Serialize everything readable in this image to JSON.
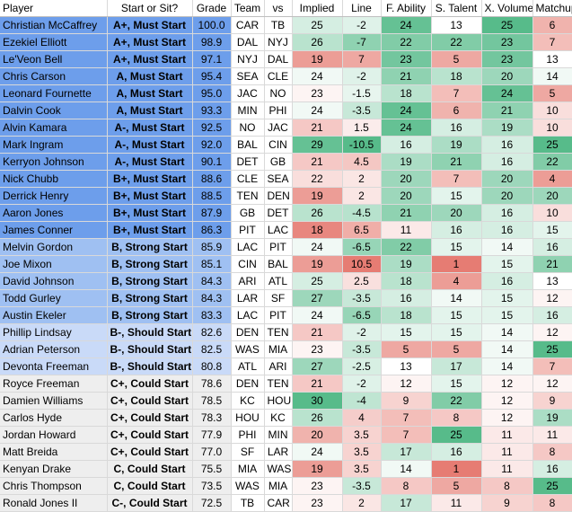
{
  "headers": [
    "Player",
    "Start or Sit?",
    "Grade",
    "Team",
    "vs",
    "Implied",
    "Line",
    "F. Ability",
    "S. Talent",
    "X. Volume",
    "Matchup"
  ],
  "colors": {
    "must": "#6d9eeb",
    "strong": "#9fc0f2",
    "should": "#c9daf8",
    "could": "#eeeeee",
    "green_strong": "#57bb8a",
    "white": "#ffffff",
    "red_strong": "#e67c73"
  },
  "rows": [
    {
      "player": "Christian McCaffrey",
      "rec": "A+, Must Start",
      "tier": "must",
      "grade": "100.0",
      "team": "CAR",
      "vs": "TB",
      "implied": "25",
      "line": "-2",
      "ability": "24",
      "talent": "13",
      "volume": "25",
      "matchup": "6"
    },
    {
      "player": "Ezekiel Elliott",
      "rec": "A+, Must Start",
      "tier": "must",
      "grade": "98.9",
      "team": "DAL",
      "vs": "NYJ",
      "implied": "26",
      "line": "-7",
      "ability": "22",
      "talent": "22",
      "volume": "23",
      "matchup": "7"
    },
    {
      "player": "Le'Veon Bell",
      "rec": "A+, Must Start",
      "tier": "must",
      "grade": "97.1",
      "team": "NYJ",
      "vs": "DAL",
      "implied": "19",
      "line": "7",
      "ability": "23",
      "talent": "5",
      "volume": "23",
      "matchup": "13"
    },
    {
      "player": "Chris Carson",
      "rec": "A, Must Start",
      "tier": "must",
      "grade": "95.4",
      "team": "SEA",
      "vs": "CLE",
      "implied": "24",
      "line": "-2",
      "ability": "21",
      "talent": "18",
      "volume": "20",
      "matchup": "14"
    },
    {
      "player": "Leonard Fournette",
      "rec": "A, Must Start",
      "tier": "must",
      "grade": "95.0",
      "team": "JAC",
      "vs": "NO",
      "implied": "23",
      "line": "-1.5",
      "ability": "18",
      "talent": "7",
      "volume": "24",
      "matchup": "5"
    },
    {
      "player": "Dalvin Cook",
      "rec": "A, Must Start",
      "tier": "must",
      "grade": "93.3",
      "team": "MIN",
      "vs": "PHI",
      "implied": "24",
      "line": "-3.5",
      "ability": "24",
      "talent": "6",
      "volume": "21",
      "matchup": "10"
    },
    {
      "player": "Alvin Kamara",
      "rec": "A-, Must Start",
      "tier": "must",
      "grade": "92.5",
      "team": "NO",
      "vs": "JAC",
      "implied": "21",
      "line": "1.5",
      "ability": "24",
      "talent": "16",
      "volume": "19",
      "matchup": "10"
    },
    {
      "player": "Mark Ingram",
      "rec": "A-, Must Start",
      "tier": "must",
      "grade": "92.0",
      "team": "BAL",
      "vs": "CIN",
      "implied": "29",
      "line": "-10.5",
      "ability": "16",
      "talent": "19",
      "volume": "16",
      "matchup": "25"
    },
    {
      "player": "Kerryon Johnson",
      "rec": "A-, Must Start",
      "tier": "must",
      "grade": "90.1",
      "team": "DET",
      "vs": "GB",
      "implied": "21",
      "line": "4.5",
      "ability": "19",
      "talent": "21",
      "volume": "16",
      "matchup": "22"
    },
    {
      "player": "Nick Chubb",
      "rec": "B+, Must Start",
      "tier": "must",
      "grade": "88.6",
      "team": "CLE",
      "vs": "SEA",
      "implied": "22",
      "line": "2",
      "ability": "20",
      "talent": "7",
      "volume": "20",
      "matchup": "4"
    },
    {
      "player": "Derrick Henry",
      "rec": "B+, Must Start",
      "tier": "must",
      "grade": "88.5",
      "team": "TEN",
      "vs": "DEN",
      "implied": "19",
      "line": "2",
      "ability": "20",
      "talent": "15",
      "volume": "20",
      "matchup": "20"
    },
    {
      "player": "Aaron Jones",
      "rec": "B+, Must Start",
      "tier": "must",
      "grade": "87.9",
      "team": "GB",
      "vs": "DET",
      "implied": "26",
      "line": "-4.5",
      "ability": "21",
      "talent": "20",
      "volume": "16",
      "matchup": "10"
    },
    {
      "player": "James Conner",
      "rec": "B+, Must Start",
      "tier": "must",
      "grade": "86.3",
      "team": "PIT",
      "vs": "LAC",
      "implied": "18",
      "line": "6.5",
      "ability": "11",
      "talent": "16",
      "volume": "16",
      "matchup": "15"
    },
    {
      "player": "Melvin Gordon",
      "rec": "B, Strong Start",
      "tier": "strong",
      "grade": "85.9",
      "team": "LAC",
      "vs": "PIT",
      "implied": "24",
      "line": "-6.5",
      "ability": "22",
      "talent": "15",
      "volume": "14",
      "matchup": "16"
    },
    {
      "player": "Joe Mixon",
      "rec": "B, Strong Start",
      "tier": "strong",
      "grade": "85.1",
      "team": "CIN",
      "vs": "BAL",
      "implied": "19",
      "line": "10.5",
      "ability": "19",
      "talent": "1",
      "volume": "15",
      "matchup": "21"
    },
    {
      "player": "David Johnson",
      "rec": "B, Strong Start",
      "tier": "strong",
      "grade": "84.3",
      "team": "ARI",
      "vs": "ATL",
      "implied": "25",
      "line": "2.5",
      "ability": "18",
      "talent": "4",
      "volume": "16",
      "matchup": "13"
    },
    {
      "player": "Todd Gurley",
      "rec": "B, Strong Start",
      "tier": "strong",
      "grade": "84.3",
      "team": "LAR",
      "vs": "SF",
      "implied": "27",
      "line": "-3.5",
      "ability": "16",
      "talent": "14",
      "volume": "15",
      "matchup": "12"
    },
    {
      "player": "Austin Ekeler",
      "rec": "B, Strong Start",
      "tier": "strong",
      "grade": "83.3",
      "team": "LAC",
      "vs": "PIT",
      "implied": "24",
      "line": "-6.5",
      "ability": "18",
      "talent": "15",
      "volume": "15",
      "matchup": "16"
    },
    {
      "player": "Phillip Lindsay",
      "rec": "B-, Should Start",
      "tier": "should",
      "grade": "82.6",
      "team": "DEN",
      "vs": "TEN",
      "implied": "21",
      "line": "-2",
      "ability": "15",
      "talent": "15",
      "volume": "14",
      "matchup": "12"
    },
    {
      "player": "Adrian Peterson",
      "rec": "B-, Should Start",
      "tier": "should",
      "grade": "82.5",
      "team": "WAS",
      "vs": "MIA",
      "implied": "23",
      "line": "-3.5",
      "ability": "5",
      "talent": "5",
      "volume": "14",
      "matchup": "25"
    },
    {
      "player": "Devonta Freeman",
      "rec": "B-, Should Start",
      "tier": "should",
      "grade": "80.8",
      "team": "ATL",
      "vs": "ARI",
      "implied": "27",
      "line": "-2.5",
      "ability": "13",
      "talent": "17",
      "volume": "14",
      "matchup": "7"
    },
    {
      "player": "Royce Freeman",
      "rec": "C+, Could Start",
      "tier": "could",
      "grade": "78.6",
      "team": "DEN",
      "vs": "TEN",
      "implied": "21",
      "line": "-2",
      "ability": "12",
      "talent": "15",
      "volume": "12",
      "matchup": "12"
    },
    {
      "player": "Damien Williams",
      "rec": "C+, Could Start",
      "tier": "could",
      "grade": "78.5",
      "team": "KC",
      "vs": "HOU",
      "implied": "30",
      "line": "-4",
      "ability": "9",
      "talent": "22",
      "volume": "12",
      "matchup": "9"
    },
    {
      "player": "Carlos Hyde",
      "rec": "C+, Could Start",
      "tier": "could",
      "grade": "78.3",
      "team": "HOU",
      "vs": "KC",
      "implied": "26",
      "line": "4",
      "ability": "7",
      "talent": "8",
      "volume": "12",
      "matchup": "19"
    },
    {
      "player": "Jordan Howard",
      "rec": "C+, Could Start",
      "tier": "could",
      "grade": "77.9",
      "team": "PHI",
      "vs": "MIN",
      "implied": "20",
      "line": "3.5",
      "ability": "7",
      "talent": "25",
      "volume": "11",
      "matchup": "11"
    },
    {
      "player": "Matt Breida",
      "rec": "C+, Could Start",
      "tier": "could",
      "grade": "77.0",
      "team": "SF",
      "vs": "LAR",
      "implied": "24",
      "line": "3.5",
      "ability": "17",
      "talent": "16",
      "volume": "11",
      "matchup": "8"
    },
    {
      "player": "Kenyan Drake",
      "rec": "C, Could Start",
      "tier": "could",
      "grade": "75.5",
      "team": "MIA",
      "vs": "WAS",
      "implied": "19",
      "line": "3.5",
      "ability": "14",
      "talent": "1",
      "volume": "11",
      "matchup": "16"
    },
    {
      "player": "Chris Thompson",
      "rec": "C, Could Start",
      "tier": "could",
      "grade": "73.5",
      "team": "WAS",
      "vs": "MIA",
      "implied": "23",
      "line": "-3.5",
      "ability": "8",
      "talent": "5",
      "volume": "8",
      "matchup": "25"
    },
    {
      "player": "Ronald Jones II",
      "rec": "C-, Could Start",
      "tier": "could",
      "grade": "72.5",
      "team": "TB",
      "vs": "CAR",
      "implied": "23",
      "line": "2",
      "ability": "17",
      "talent": "11",
      "volume": "9",
      "matchup": "8"
    }
  ]
}
